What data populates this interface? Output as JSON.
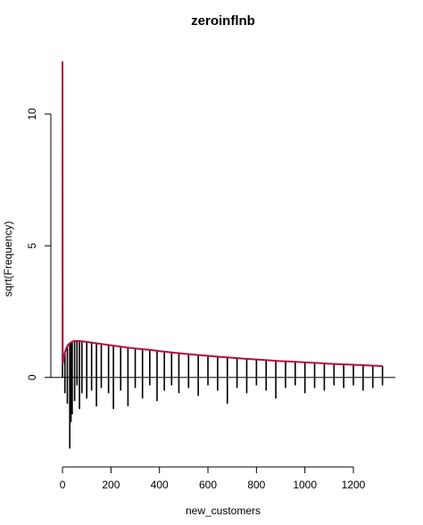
{
  "chart_data": {
    "type": "rootogram",
    "title": "zeroinflnb",
    "x_label": "new_customers",
    "y_label": "sqrt(Frequency)",
    "xlim": [
      -48,
      1373
    ],
    "ylim": [
      -3.4,
      12.4
    ],
    "xticks": [
      0,
      200,
      400,
      600,
      800,
      1000,
      1200
    ],
    "yticks": [
      0,
      5,
      10
    ],
    "bar_color": "#000000",
    "bars": {
      "x": [
        0,
        10,
        20,
        30,
        35,
        40,
        50,
        60,
        70,
        80,
        100,
        120,
        140,
        160,
        190,
        210,
        240,
        270,
        300,
        330,
        360,
        390,
        420,
        450,
        480,
        520,
        560,
        600,
        640,
        680,
        720,
        760,
        800,
        840,
        880,
        920,
        960,
        1000,
        1040,
        1080,
        1120,
        1160,
        1200,
        1240,
        1280,
        1320
      ],
      "expected": [
        12,
        0.95,
        1.2,
        1.3,
        1.33,
        1.36,
        1.39,
        1.39,
        1.38,
        1.37,
        1.35,
        1.32,
        1.3,
        1.27,
        1.23,
        1.21,
        1.17,
        1.13,
        1.1,
        1.07,
        1.05,
        1.01,
        0.98,
        0.95,
        0.92,
        0.88,
        0.85,
        0.82,
        0.79,
        0.76,
        0.73,
        0.7,
        0.68,
        0.65,
        0.63,
        0.61,
        0.59,
        0.57,
        0.55,
        0.53,
        0.51,
        0.5,
        0.48,
        0.46,
        0.45,
        0.43
      ],
      "observed": [
        12,
        1.55,
        2.2,
        4.0,
        3.03,
        2.76,
        2.29,
        1.69,
        2.58,
        1.97,
        2.15,
        1.82,
        2.4,
        1.67,
        1.83,
        2.41,
        1.67,
        2.23,
        1.5,
        1.87,
        1.35,
        1.91,
        1.48,
        1.25,
        1.52,
        1.28,
        1.55,
        1.12,
        1.29,
        1.76,
        1.13,
        1.3,
        0.98,
        1.15,
        1.43,
        1.01,
        0.89,
        1.17,
        0.95,
        1.03,
        0.81,
        0.9,
        0.78,
        0.96,
        0.85,
        0.73
      ]
    },
    "curve": {
      "color": "#b3113f",
      "x": [
        0,
        1,
        5,
        10,
        20,
        30,
        40,
        50,
        70,
        100,
        130,
        160,
        200,
        240,
        280,
        320,
        360,
        400,
        450,
        500,
        550,
        600,
        650,
        700,
        750,
        800,
        850,
        900,
        950,
        1000,
        1050,
        1100,
        1150,
        1200,
        1250,
        1300,
        1320
      ],
      "y": [
        12,
        0.5,
        0.75,
        0.95,
        1.2,
        1.3,
        1.36,
        1.39,
        1.38,
        1.35,
        1.31,
        1.27,
        1.22,
        1.17,
        1.12,
        1.08,
        1.05,
        1.0,
        0.95,
        0.9,
        0.86,
        0.82,
        0.78,
        0.75,
        0.71,
        0.68,
        0.65,
        0.62,
        0.6,
        0.57,
        0.55,
        0.52,
        0.5,
        0.48,
        0.46,
        0.44,
        0.43
      ]
    }
  }
}
